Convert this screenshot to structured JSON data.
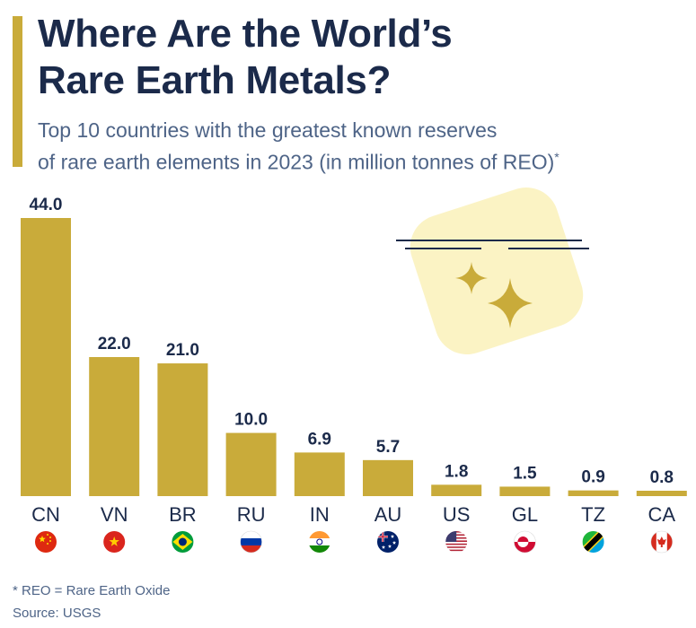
{
  "header": {
    "title_line1": "Where Are the World’s",
    "title_line2": "Rare Earth Metals?",
    "subtitle_line1": "Top 10 countries with the greatest known reserves",
    "subtitle_line2": "of rare earth elements in 2023 (in million tonnes of REO)",
    "subtitle_mark": "*"
  },
  "chart_data": {
    "type": "bar",
    "categories": [
      "CN",
      "VN",
      "BR",
      "RU",
      "IN",
      "AU",
      "US",
      "GL",
      "TZ",
      "CA"
    ],
    "values": [
      44.0,
      22.0,
      21.0,
      10.0,
      6.9,
      5.7,
      1.8,
      1.5,
      0.9,
      0.8
    ],
    "value_labels": [
      "44.0",
      "22.0",
      "21.0",
      "10.0",
      "6.9",
      "5.7",
      "1.8",
      "1.5",
      "0.9",
      "0.8"
    ],
    "flags": [
      "china-flag-icon",
      "vietnam-flag-icon",
      "brazil-flag-icon",
      "russia-flag-icon",
      "india-flag-icon",
      "australia-flag-icon",
      "usa-flag-icon",
      "greenland-flag-icon",
      "tanzania-flag-icon",
      "canada-flag-icon"
    ],
    "ylim": [
      0,
      44
    ],
    "grid": false,
    "bar_color": "#c9ab3a"
  },
  "footer": {
    "footnote": "* REO = Rare Earth Oxide",
    "source": "Source: USGS"
  },
  "colors": {
    "accent": "#c9ab3a",
    "title": "#1b2a4a",
    "subtitle": "#4e6487",
    "decoration_bg": "#fbf3c4"
  }
}
